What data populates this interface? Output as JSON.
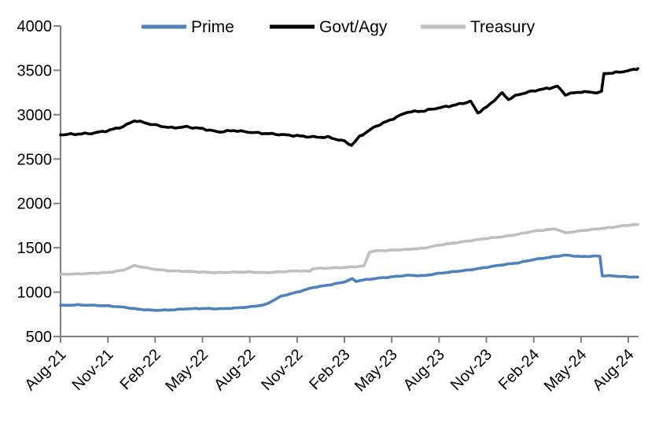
{
  "chart_data": {
    "type": "line",
    "ylim": [
      500,
      4000
    ],
    "yticks": [
      500,
      1000,
      1500,
      2000,
      2500,
      3000,
      3500,
      4000
    ],
    "x_tick_labels": [
      "Aug-21",
      "Nov-21",
      "Feb-22",
      "May-22",
      "Aug-22",
      "Nov-22",
      "Feb-23",
      "May-23",
      "Aug-23",
      "Nov-23",
      "Feb-24",
      "May-24",
      "Aug-24"
    ],
    "x_unit": "months since Aug-21 (ticks every 3 months)",
    "grid": false,
    "legend_position": "top",
    "axis_color": "#808080",
    "series": [
      {
        "name": "Prime",
        "color": "#4F81BD",
        "x": [
          0,
          1,
          2,
          3,
          4,
          5,
          6,
          7,
          8,
          9,
          10,
          11,
          12,
          13,
          14,
          15,
          16,
          17,
          18,
          18.5,
          18.75,
          19,
          20,
          21,
          22,
          23,
          24,
          25,
          26,
          27,
          28,
          29,
          30,
          31,
          32,
          33,
          34,
          34.2,
          34.35,
          35,
          36,
          36.6
        ],
        "values": [
          850,
          856,
          852,
          845,
          830,
          806,
          795,
          800,
          812,
          816,
          812,
          820,
          833,
          860,
          955,
          1000,
          1052,
          1080,
          1115,
          1150,
          1122,
          1132,
          1155,
          1172,
          1190,
          1185,
          1212,
          1232,
          1252,
          1280,
          1308,
          1330,
          1368,
          1392,
          1418,
          1400,
          1408,
          1403,
          1185,
          1183,
          1172,
          1170
        ]
      },
      {
        "name": "Govt/Agy",
        "color": "#000000",
        "x": [
          0,
          1,
          2,
          3,
          4,
          4.7,
          5,
          6,
          7,
          8,
          9,
          10,
          11,
          12,
          13,
          14,
          15,
          16,
          17,
          18,
          18.45,
          19,
          20,
          21,
          22,
          23,
          24,
          25,
          26,
          26.45,
          27,
          28,
          28.4,
          29,
          30,
          31,
          31.5,
          32,
          33,
          34,
          34.3,
          34.45,
          35,
          36,
          36.6
        ],
        "values": [
          2775,
          2782,
          2790,
          2820,
          2868,
          2935,
          2922,
          2882,
          2852,
          2862,
          2842,
          2805,
          2822,
          2802,
          2788,
          2775,
          2762,
          2748,
          2745,
          2700,
          2655,
          2760,
          2870,
          2948,
          3030,
          3042,
          3078,
          3108,
          3150,
          3022,
          3082,
          3245,
          3172,
          3225,
          3270,
          3300,
          3320,
          3228,
          3258,
          3250,
          3255,
          3465,
          3470,
          3495,
          3520
        ]
      },
      {
        "name": "Treasury",
        "color": "#BFBFBF",
        "x": [
          0,
          1,
          2,
          3,
          4,
          4.7,
          5,
          6,
          7,
          8,
          9,
          10,
          11,
          12,
          13,
          14,
          15,
          15.8,
          16,
          17,
          18,
          19,
          19.25,
          19.6,
          20,
          21,
          22,
          23,
          24,
          25,
          26,
          27,
          28,
          29,
          30,
          31,
          31.4,
          32,
          33,
          34,
          35,
          36,
          36.6
        ],
        "values": [
          1200,
          1205,
          1212,
          1222,
          1248,
          1300,
          1288,
          1256,
          1240,
          1235,
          1226,
          1220,
          1226,
          1226,
          1220,
          1230,
          1240,
          1235,
          1265,
          1272,
          1278,
          1290,
          1298,
          1455,
          1465,
          1472,
          1482,
          1495,
          1530,
          1555,
          1580,
          1605,
          1625,
          1652,
          1688,
          1706,
          1712,
          1668,
          1692,
          1712,
          1732,
          1755,
          1762
        ]
      }
    ]
  }
}
